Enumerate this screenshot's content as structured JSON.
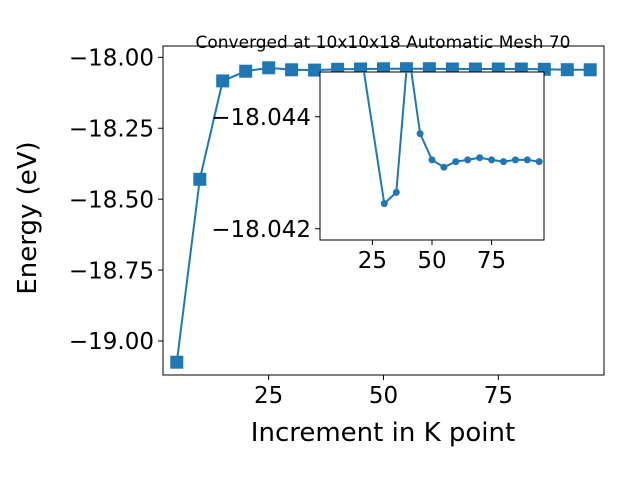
{
  "chart_data": [
    {
      "type": "line",
      "title": "Converged at 10x10x18 Automatic Mesh 70",
      "xlabel": "Increment in K point",
      "ylabel": "Energy (eV)",
      "xlim": [
        2,
        98
      ],
      "ylim": [
        -19.12,
        -17.96
      ],
      "xticks": [
        25,
        50,
        75
      ],
      "yticks": [
        -18.0,
        -18.25,
        -18.5,
        -18.75,
        -19.0
      ],
      "x_tick_labels": [
        "25",
        "50",
        "75"
      ],
      "y_tick_labels": [
        "−18.00",
        "−18.25",
        "−18.50",
        "−18.75",
        "−19.00"
      ],
      "marker": "square",
      "color": "#1f77b4",
      "series": [
        {
          "x": [
            5,
            10,
            15,
            20,
            25,
            30,
            35,
            40,
            45,
            50,
            55,
            60,
            65,
            70,
            75,
            80,
            85,
            90,
            95
          ],
          "y": [
            -19.075,
            -18.43,
            -18.083,
            -18.049,
            -18.037,
            -18.044,
            -18.045,
            -18.0423,
            -18.0411,
            -18.0405,
            -18.0402,
            -18.0401,
            -18.041,
            -18.0412,
            -18.041,
            -18.041,
            -18.042,
            -18.0435,
            -18.044
          ]
        }
      ]
    },
    {
      "type": "line",
      "title": "",
      "xlabel": "",
      "ylabel": "",
      "inset": true,
      "xlim": [
        3,
        97
      ],
      "ylim": [
        -18.0418,
        -18.0448
      ],
      "xticks": [
        25,
        50,
        75
      ],
      "yticks": [
        -18.044,
        -18.042
      ],
      "x_tick_labels": [
        "25",
        "50",
        "75"
      ],
      "y_tick_labels": [
        "−18.044",
        "−18.042"
      ],
      "marker": "circle",
      "color": "#1f77b4",
      "series": [
        {
          "x": [
            20,
            30,
            35,
            40,
            45,
            50,
            55,
            60,
            65,
            70,
            75,
            80,
            85,
            90,
            95
          ],
          "y": [
            -18.0452,
            -18.04245,
            -18.04265,
            -18.0452,
            -18.0437,
            -18.04323,
            -18.0431,
            -18.0432,
            -18.04323,
            -18.04327,
            -18.04323,
            -18.0432,
            -18.04323,
            -18.04323,
            -18.0432
          ]
        }
      ]
    }
  ]
}
